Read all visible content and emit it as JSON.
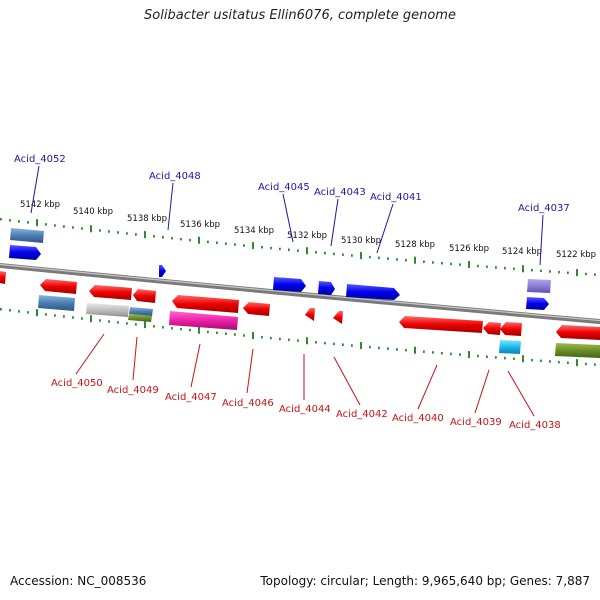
{
  "title": "Solibacter usitatus Ellin6076, complete genome",
  "footer": {
    "accession": "Accession: NC_008536",
    "stats": "Topology: circular; Length: 9,965,640 bp; Genes: 7,887"
  },
  "colors": {
    "forward_label": "#1a1aaa",
    "reverse_label": "#cc1111",
    "backbone": "#8c8c8c",
    "tick": "#2d8a2d"
  },
  "scale_labels": [
    "5142 kbp",
    "5140 kbp",
    "5138 kbp",
    "5136 kbp",
    "5134 kbp",
    "5132 kbp",
    "5130 kbp",
    "5128 kbp",
    "5126 kbp",
    "5124 kbp",
    "5122 kbp"
  ],
  "forward_labels": [
    "Acid_4052",
    "Acid_4048",
    "Acid_4045",
    "Acid_4043",
    "Acid_4041",
    "Acid_4037"
  ],
  "reverse_labels": [
    "Acid_4050",
    "Acid_4049",
    "Acid_4047",
    "Acid_4046",
    "Acid_4044",
    "Acid_4042",
    "Acid_4040",
    "Acid_4039",
    "Acid_4038"
  ]
}
